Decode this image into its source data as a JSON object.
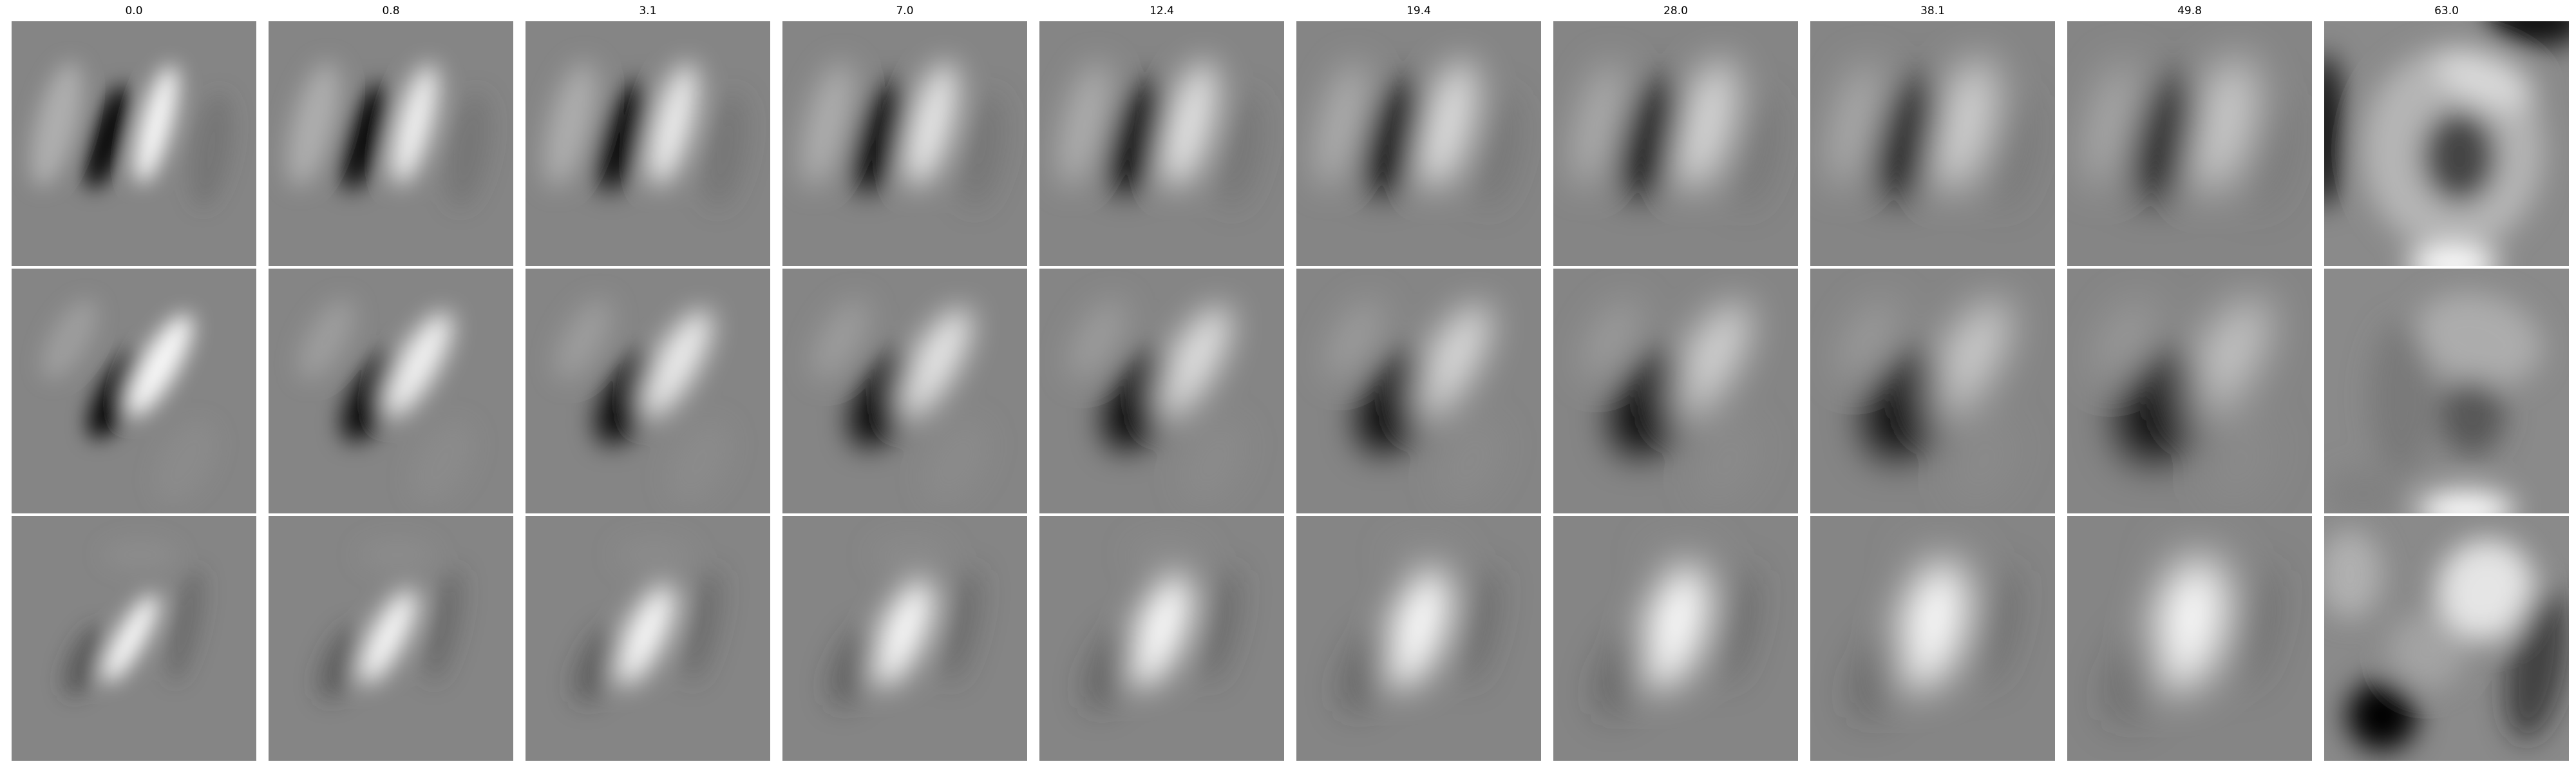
{
  "figure": {
    "column_titles": [
      "0.0",
      "0.8",
      "3.1",
      "7.0",
      "12.4",
      "19.4",
      "28.0",
      "38.1",
      "49.8",
      "63.0"
    ],
    "rows": 3,
    "colormap": "grayscale"
  }
}
